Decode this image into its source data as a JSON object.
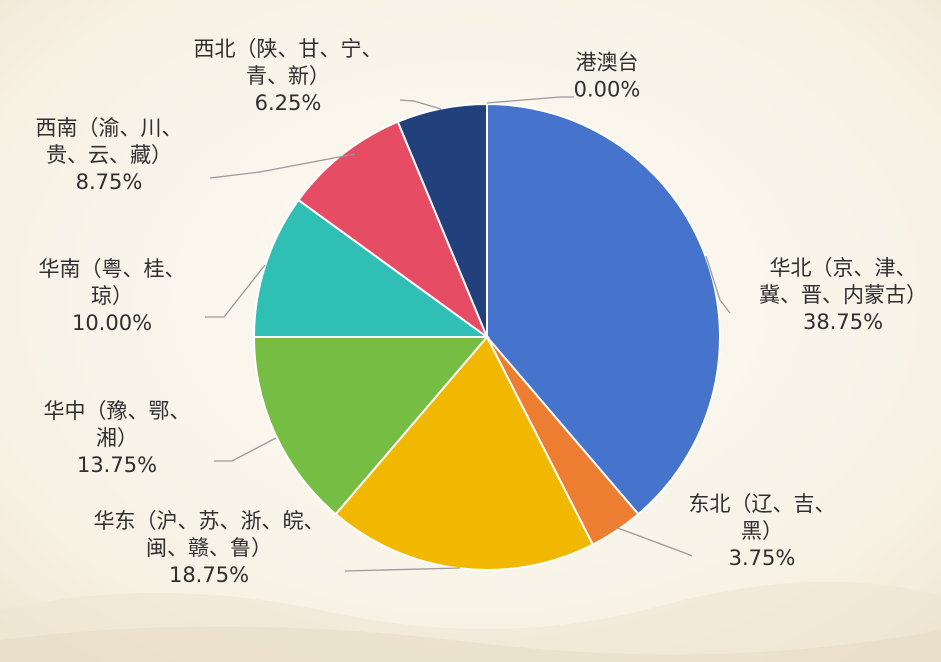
{
  "chart_data": {
    "type": "pie",
    "start_angle_deg": 0,
    "direction": "clockwise",
    "slices": [
      {
        "name": "华北（京、津、冀、晋、内蒙古）",
        "label_lines": [
          "华北（京、津、",
          "冀、晋、内蒙古）"
        ],
        "value": 38.75,
        "value_label": "38.75%",
        "color": "#4674cc"
      },
      {
        "name": "东北（辽、吉、黑）",
        "label_lines": [
          "东北（辽、吉、",
          "黑）"
        ],
        "value": 3.75,
        "value_label": "3.75%",
        "color": "#ed7d31"
      },
      {
        "name": "华东（沪、苏、浙、皖、闽、赣、鲁）",
        "label_lines": [
          "华东（沪、苏、浙、皖、",
          "闽、赣、鲁）"
        ],
        "value": 18.75,
        "value_label": "18.75%",
        "color": "#f2b800"
      },
      {
        "name": "华中（豫、鄂、湘）",
        "label_lines": [
          "华中（豫、鄂、",
          "湘）"
        ],
        "value": 13.75,
        "value_label": "13.75%",
        "color": "#76bd43"
      },
      {
        "name": "华南（粤、桂、琼）",
        "label_lines": [
          "华南（粤、桂、",
          "琼）"
        ],
        "value": 10.0,
        "value_label": "10.00%",
        "color": "#2fbfb4"
      },
      {
        "name": "西南（渝、川、贵、云、藏）",
        "label_lines": [
          "西南（渝、川、",
          "贵、云、藏）"
        ],
        "value": 8.75,
        "value_label": "8.75%",
        "color": "#e64c64"
      },
      {
        "name": "西北（陕、甘、宁、青、新）",
        "label_lines": [
          "西北（陕、甘、宁、",
          "青、新）"
        ],
        "value": 6.25,
        "value_label": "6.25%",
        "color": "#22417c"
      },
      {
        "name": "港澳台",
        "label_lines": [
          "港澳台"
        ],
        "value": 0.0,
        "value_label": "0.00%",
        "color": "#8c8c8c"
      }
    ]
  }
}
